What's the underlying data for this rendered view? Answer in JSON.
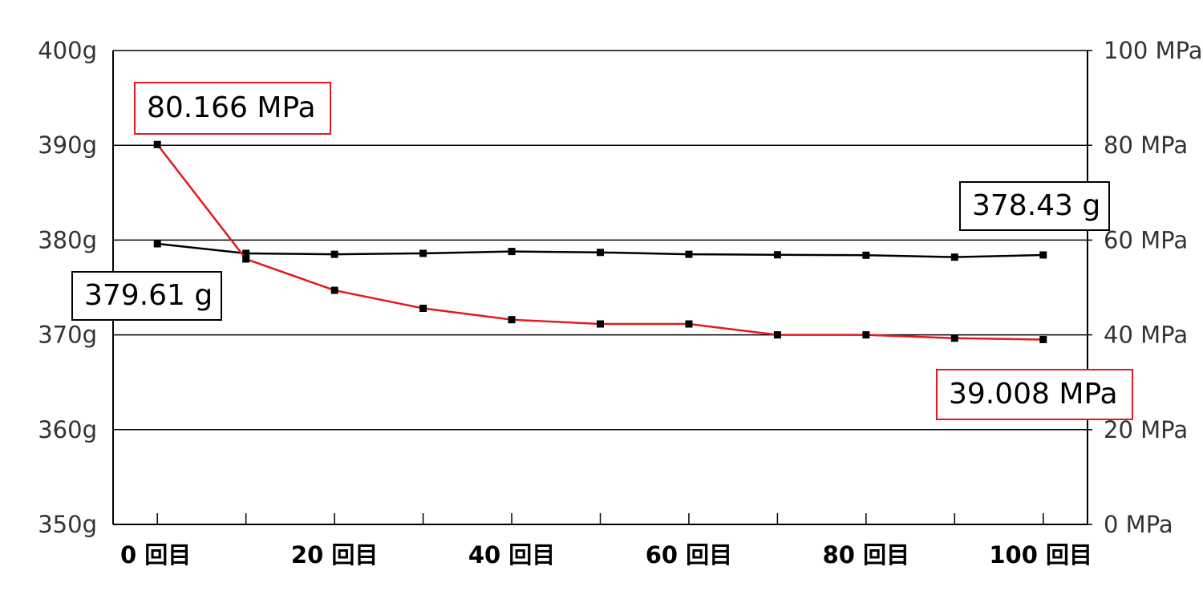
{
  "chart_data": {
    "type": "line",
    "x_tick_labels": [
      "0 回目",
      "20 回目",
      "40 回目",
      "60 回目",
      "80 回目",
      "100 回目"
    ],
    "x_ticks": [
      0,
      20,
      40,
      60,
      80,
      100
    ],
    "xlim": [
      -5,
      105
    ],
    "x": [
      0,
      10,
      20,
      30,
      40,
      50,
      60,
      70,
      80,
      90,
      100
    ],
    "left_axis": {
      "tick_labels": [
        "400g",
        "390g",
        "380g",
        "370g",
        "360g",
        "350g"
      ],
      "ticks": [
        400,
        390,
        380,
        370,
        360,
        350
      ],
      "ylim": [
        350,
        400
      ]
    },
    "right_axis": {
      "tick_labels": [
        "100 MPa",
        "80 MPa",
        "60 MPa",
        "40 MPa",
        "20 MPa",
        "0 MPa"
      ],
      "ticks": [
        100,
        80,
        60,
        40,
        20,
        0
      ],
      "ylim": [
        0,
        100
      ]
    },
    "grid": "horizontal",
    "series": [
      {
        "axis": "left",
        "color": "#000000",
        "values": [
          379.61,
          378.6,
          378.5,
          378.6,
          378.8,
          378.7,
          378.5,
          378.45,
          378.4,
          378.2,
          378.43
        ]
      },
      {
        "axis": "right",
        "color": "#e3191f",
        "values": [
          80.166,
          56.0,
          49.4,
          45.6,
          43.2,
          42.3,
          42.3,
          40.0,
          40.0,
          39.3,
          39.008
        ]
      }
    ],
    "annotations": [
      {
        "text": "80.166 MPa",
        "color": "#e3191f"
      },
      {
        "text": "379.61 g",
        "color": "#000000"
      },
      {
        "text": "378.43 g",
        "color": "#000000"
      },
      {
        "text": "39.008 MPa",
        "color": "#e3191f"
      }
    ]
  }
}
